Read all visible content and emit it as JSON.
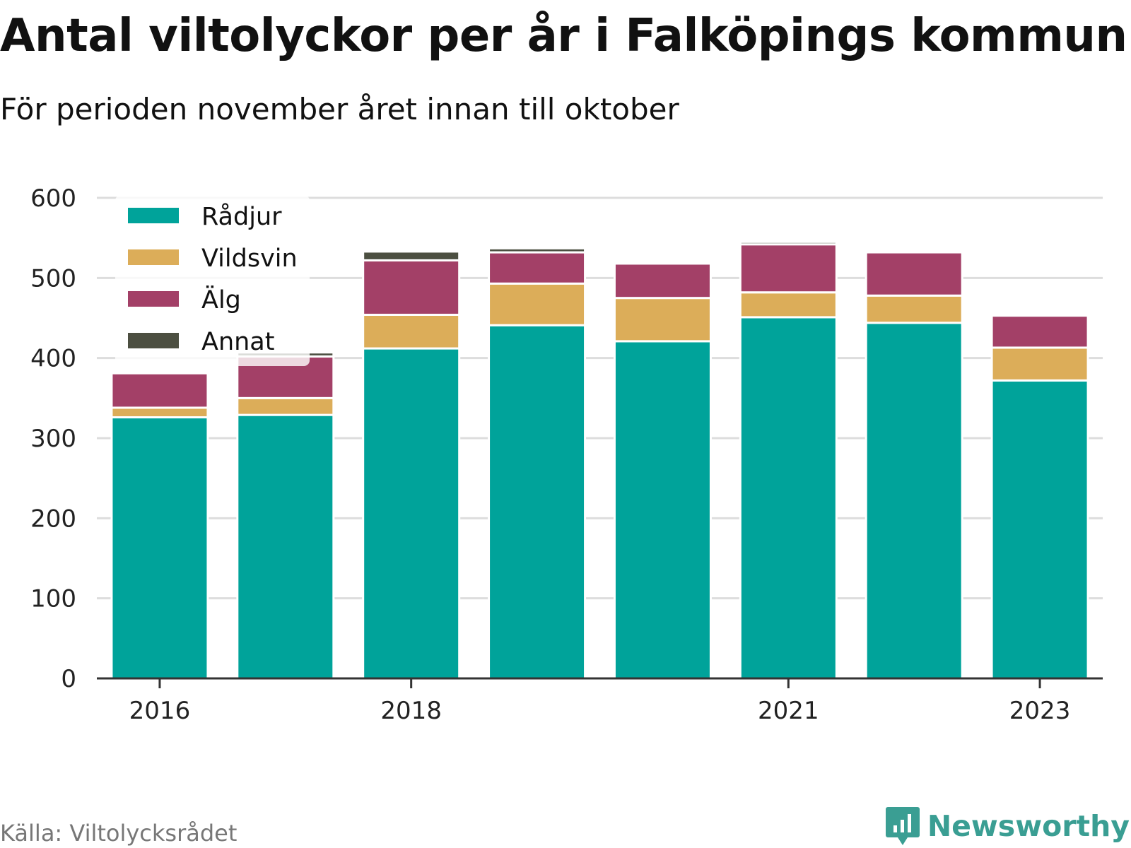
{
  "header": {
    "title": "Antal viltolyckor per år i Falköpings kommun",
    "subtitle": "För perioden november året innan till oktober"
  },
  "footer": {
    "source": "Källa: Viltolycksrådet",
    "brand": "Newsworthy",
    "brand_icon": "bar-chart-speech-bubble-icon",
    "brand_color": "#3a9e93"
  },
  "chart_data": {
    "type": "bar",
    "stacked": true,
    "categories": [
      "2016",
      "2017",
      "2018",
      "2019",
      "2020",
      "2021",
      "2022",
      "2023"
    ],
    "x_tick_labels": [
      "2016",
      "2018",
      "2021",
      "2023"
    ],
    "series": [
      {
        "name": "Rådjur",
        "color": "#00a39a",
        "values": [
          326,
          329,
          412,
          441,
          421,
          451,
          444,
          372
        ]
      },
      {
        "name": "Vildsvin",
        "color": "#dcad59",
        "values": [
          12,
          21,
          42,
          52,
          54,
          31,
          34,
          41
        ]
      },
      {
        "name": "Älg",
        "color": "#a34067",
        "values": [
          43,
          52,
          68,
          39,
          43,
          60,
          54,
          40
        ]
      },
      {
        "name": "Annat",
        "color": "#4c4f41",
        "values": [
          0,
          5,
          11,
          5,
          2,
          3,
          0,
          2
        ]
      }
    ],
    "ylim": [
      0,
      600
    ],
    "y_ticks": [
      0,
      100,
      200,
      300,
      400,
      500,
      600
    ],
    "xlabel": "",
    "ylabel": "",
    "grid": true,
    "legend_position": "top-left"
  }
}
